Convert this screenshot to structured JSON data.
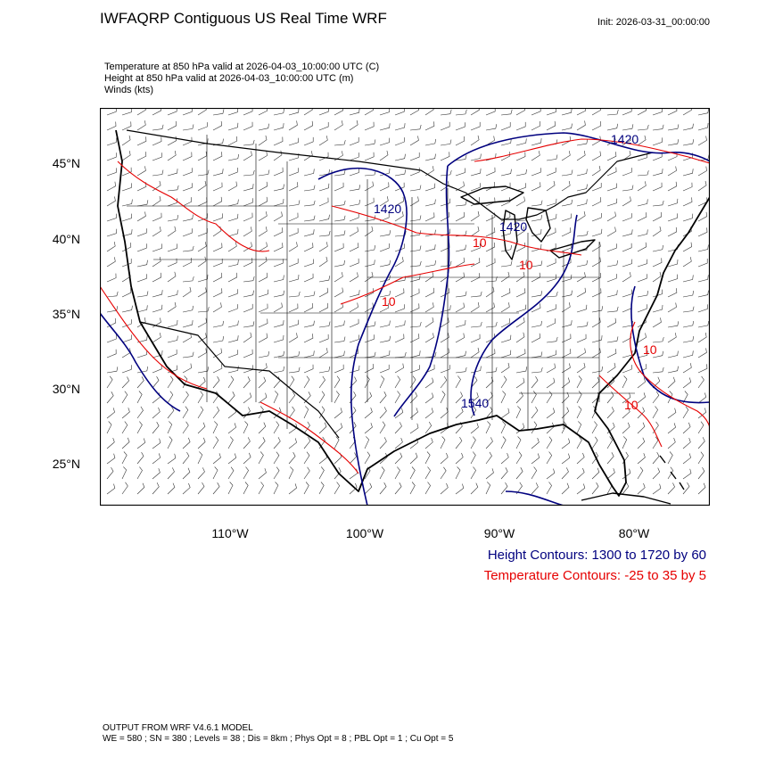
{
  "header": {
    "title": "IWFAQRP Contiguous US Real Time WRF",
    "init": "Init: 2026-03-31_00:00:00"
  },
  "fields": {
    "temperature": "Temperature at 850 hPa valid at 2026-04-03_10:00:00 UTC   (C)",
    "height": "Height at 850 hPa valid at 2026-04-03_10:00:00 UTC   (m)",
    "winds": "Winds   (kts)"
  },
  "axes": {
    "lat_labels": [
      "45°N",
      "40°N",
      "35°N",
      "30°N",
      "25°N"
    ],
    "lon_labels": [
      "110°W",
      "100°W",
      "90°W",
      "80°W"
    ]
  },
  "map": {
    "contour_labels": {
      "height": [
        "1420",
        "1420",
        "1420",
        "1540"
      ],
      "temperature": [
        "10",
        "10",
        "10",
        "10",
        "10"
      ]
    },
    "colors": {
      "height": "#00007f",
      "temperature": "#e60000",
      "borders": "#000000"
    }
  },
  "legend": {
    "height": "Height Contours: 1300 to 1720 by 60",
    "temperature": "Temperature Contours: -25 to 35 by 5"
  },
  "footer": {
    "model": "OUTPUT FROM WRF V4.6.1 MODEL",
    "config": "WE = 580 ; SN = 380 ; Levels = 38 ; Dis = 8km ; Phys Opt = 8 ; PBL Opt = 1 ; Cu Opt = 5"
  }
}
